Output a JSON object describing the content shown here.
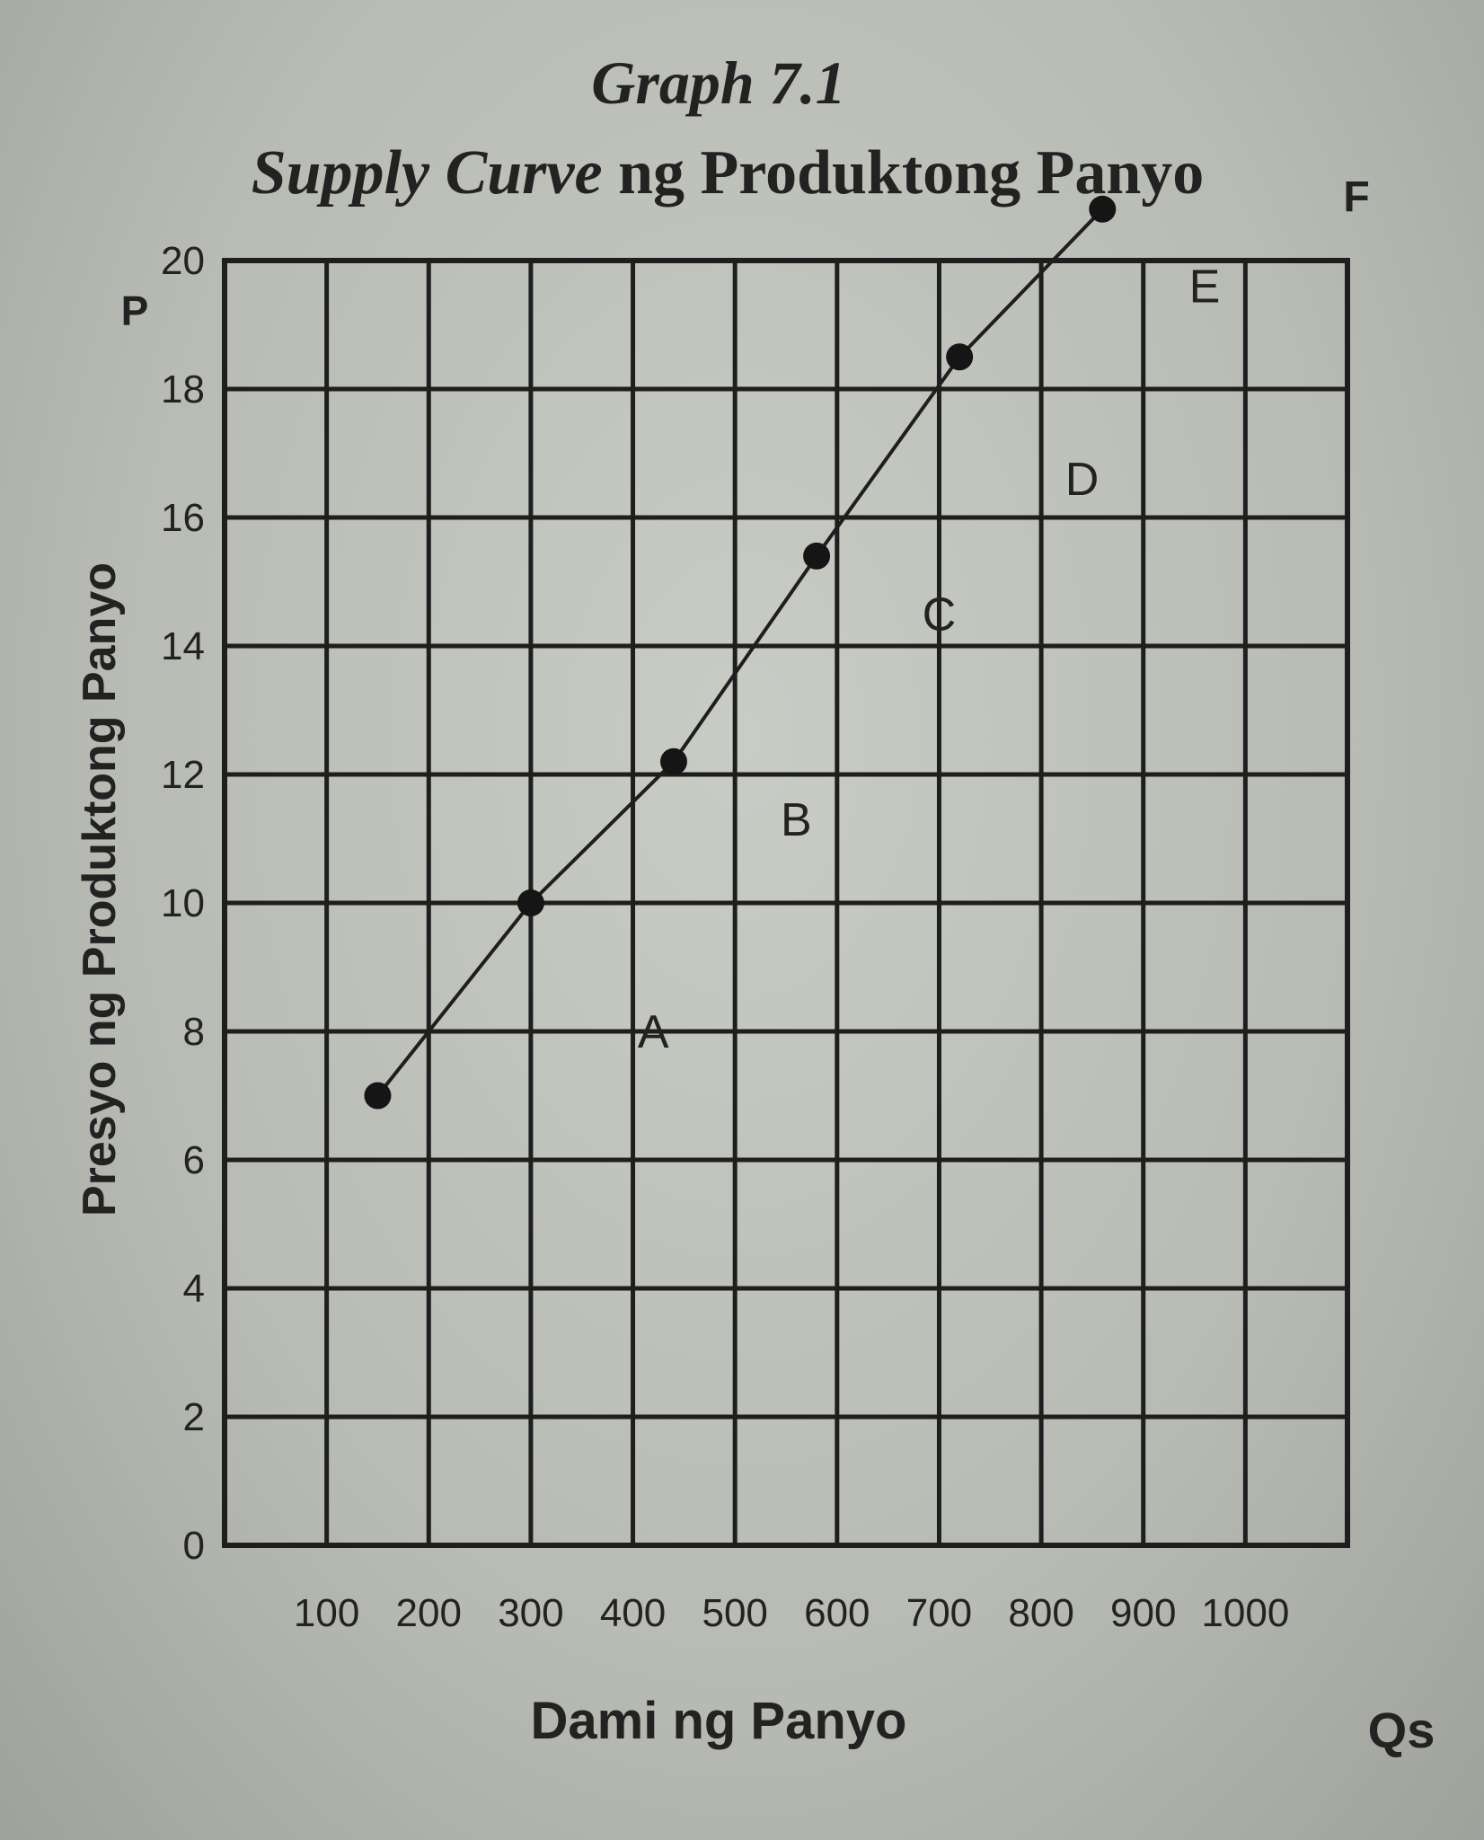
{
  "chart_data": {
    "type": "line",
    "title_line1": "Graph 7.1",
    "title_line2_italic": "Supply Curve",
    "title_line2_rest": " ng Produktong Panyo",
    "ylabel": "Presyo ng Produktong Panyo",
    "xlabel": "Dami ng Panyo",
    "y_axis_symbol": "P",
    "x_axis_symbol": "Qs",
    "curve_label": "F",
    "ylim": [
      0,
      20
    ],
    "xlim": [
      0,
      1100
    ],
    "y_ticks": [
      0,
      2,
      4,
      6,
      8,
      10,
      12,
      14,
      16,
      18,
      20
    ],
    "x_ticks": [
      100,
      200,
      300,
      400,
      500,
      600,
      700,
      800,
      900,
      1000
    ],
    "grid": true,
    "series": [
      {
        "x": [
          150,
          300,
          440,
          580,
          720,
          860
        ],
        "y": [
          7,
          10,
          12.2,
          15.4,
          18.5,
          20.8
        ]
      }
    ],
    "point_labels": [
      {
        "label": "A",
        "x": 420,
        "y": 8
      },
      {
        "label": "B",
        "x": 560,
        "y": 11.3
      },
      {
        "label": "C",
        "x": 700,
        "y": 14.5
      },
      {
        "label": "D",
        "x": 840,
        "y": 16.6
      },
      {
        "label": "E",
        "x": 960,
        "y": 19.6
      }
    ]
  }
}
